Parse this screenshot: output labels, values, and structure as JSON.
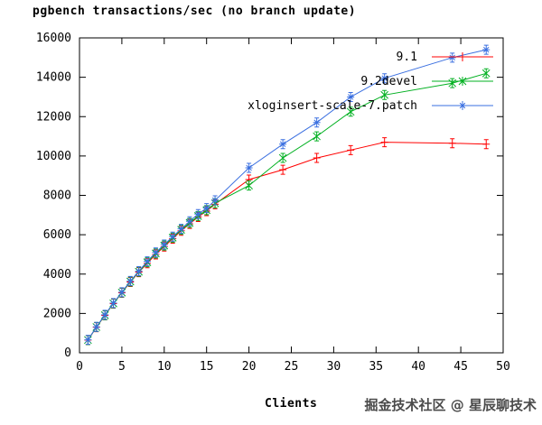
{
  "title": "pgbench transactions/sec (no branch update)",
  "watermark": "掘金技术社区 @ 星辰聊技术",
  "chart_data": {
    "type": "line",
    "title": "pgbench transactions/sec (no branch update)",
    "xlabel": "Clients",
    "ylabel": "",
    "xlim": [
      0,
      50
    ],
    "ylim": [
      0,
      16000
    ],
    "xticks": [
      0,
      5,
      10,
      15,
      20,
      25,
      30,
      35,
      40,
      45,
      50
    ],
    "yticks": [
      0,
      2000,
      4000,
      6000,
      8000,
      10000,
      12000,
      14000,
      16000
    ],
    "grid": false,
    "legend_position": "top-right-inside",
    "x": [
      1,
      2,
      3,
      4,
      5,
      6,
      7,
      8,
      9,
      10,
      11,
      12,
      13,
      14,
      15,
      16,
      20,
      24,
      28,
      32,
      36,
      44,
      48
    ],
    "series": [
      {
        "name": "9.1",
        "color": "#ff0000",
        "marker": "plus",
        "values": [
          650,
          1300,
          1900,
          2500,
          3050,
          3600,
          4100,
          4550,
          5000,
          5400,
          5800,
          6200,
          6550,
          6900,
          7200,
          7550,
          8800,
          9300,
          9900,
          10300,
          10700,
          10650,
          10600
        ]
      },
      {
        "name": "9.2devel",
        "color": "#00b020",
        "marker": "cross",
        "values": [
          650,
          1310,
          1910,
          2510,
          3060,
          3620,
          4120,
          4600,
          5050,
          5450,
          5850,
          6250,
          6600,
          6950,
          7250,
          7600,
          8500,
          9900,
          11000,
          12250,
          13100,
          13700,
          14200
        ]
      },
      {
        "name": "xloginsert-scale-7.patch",
        "color": "#3a6fe0",
        "marker": "asterisk",
        "values": [
          660,
          1320,
          1930,
          2530,
          3080,
          3650,
          4150,
          4650,
          5100,
          5500,
          5900,
          6300,
          6680,
          7050,
          7350,
          7750,
          9400,
          10600,
          11700,
          13000,
          13950,
          15000,
          15400
        ]
      }
    ]
  }
}
